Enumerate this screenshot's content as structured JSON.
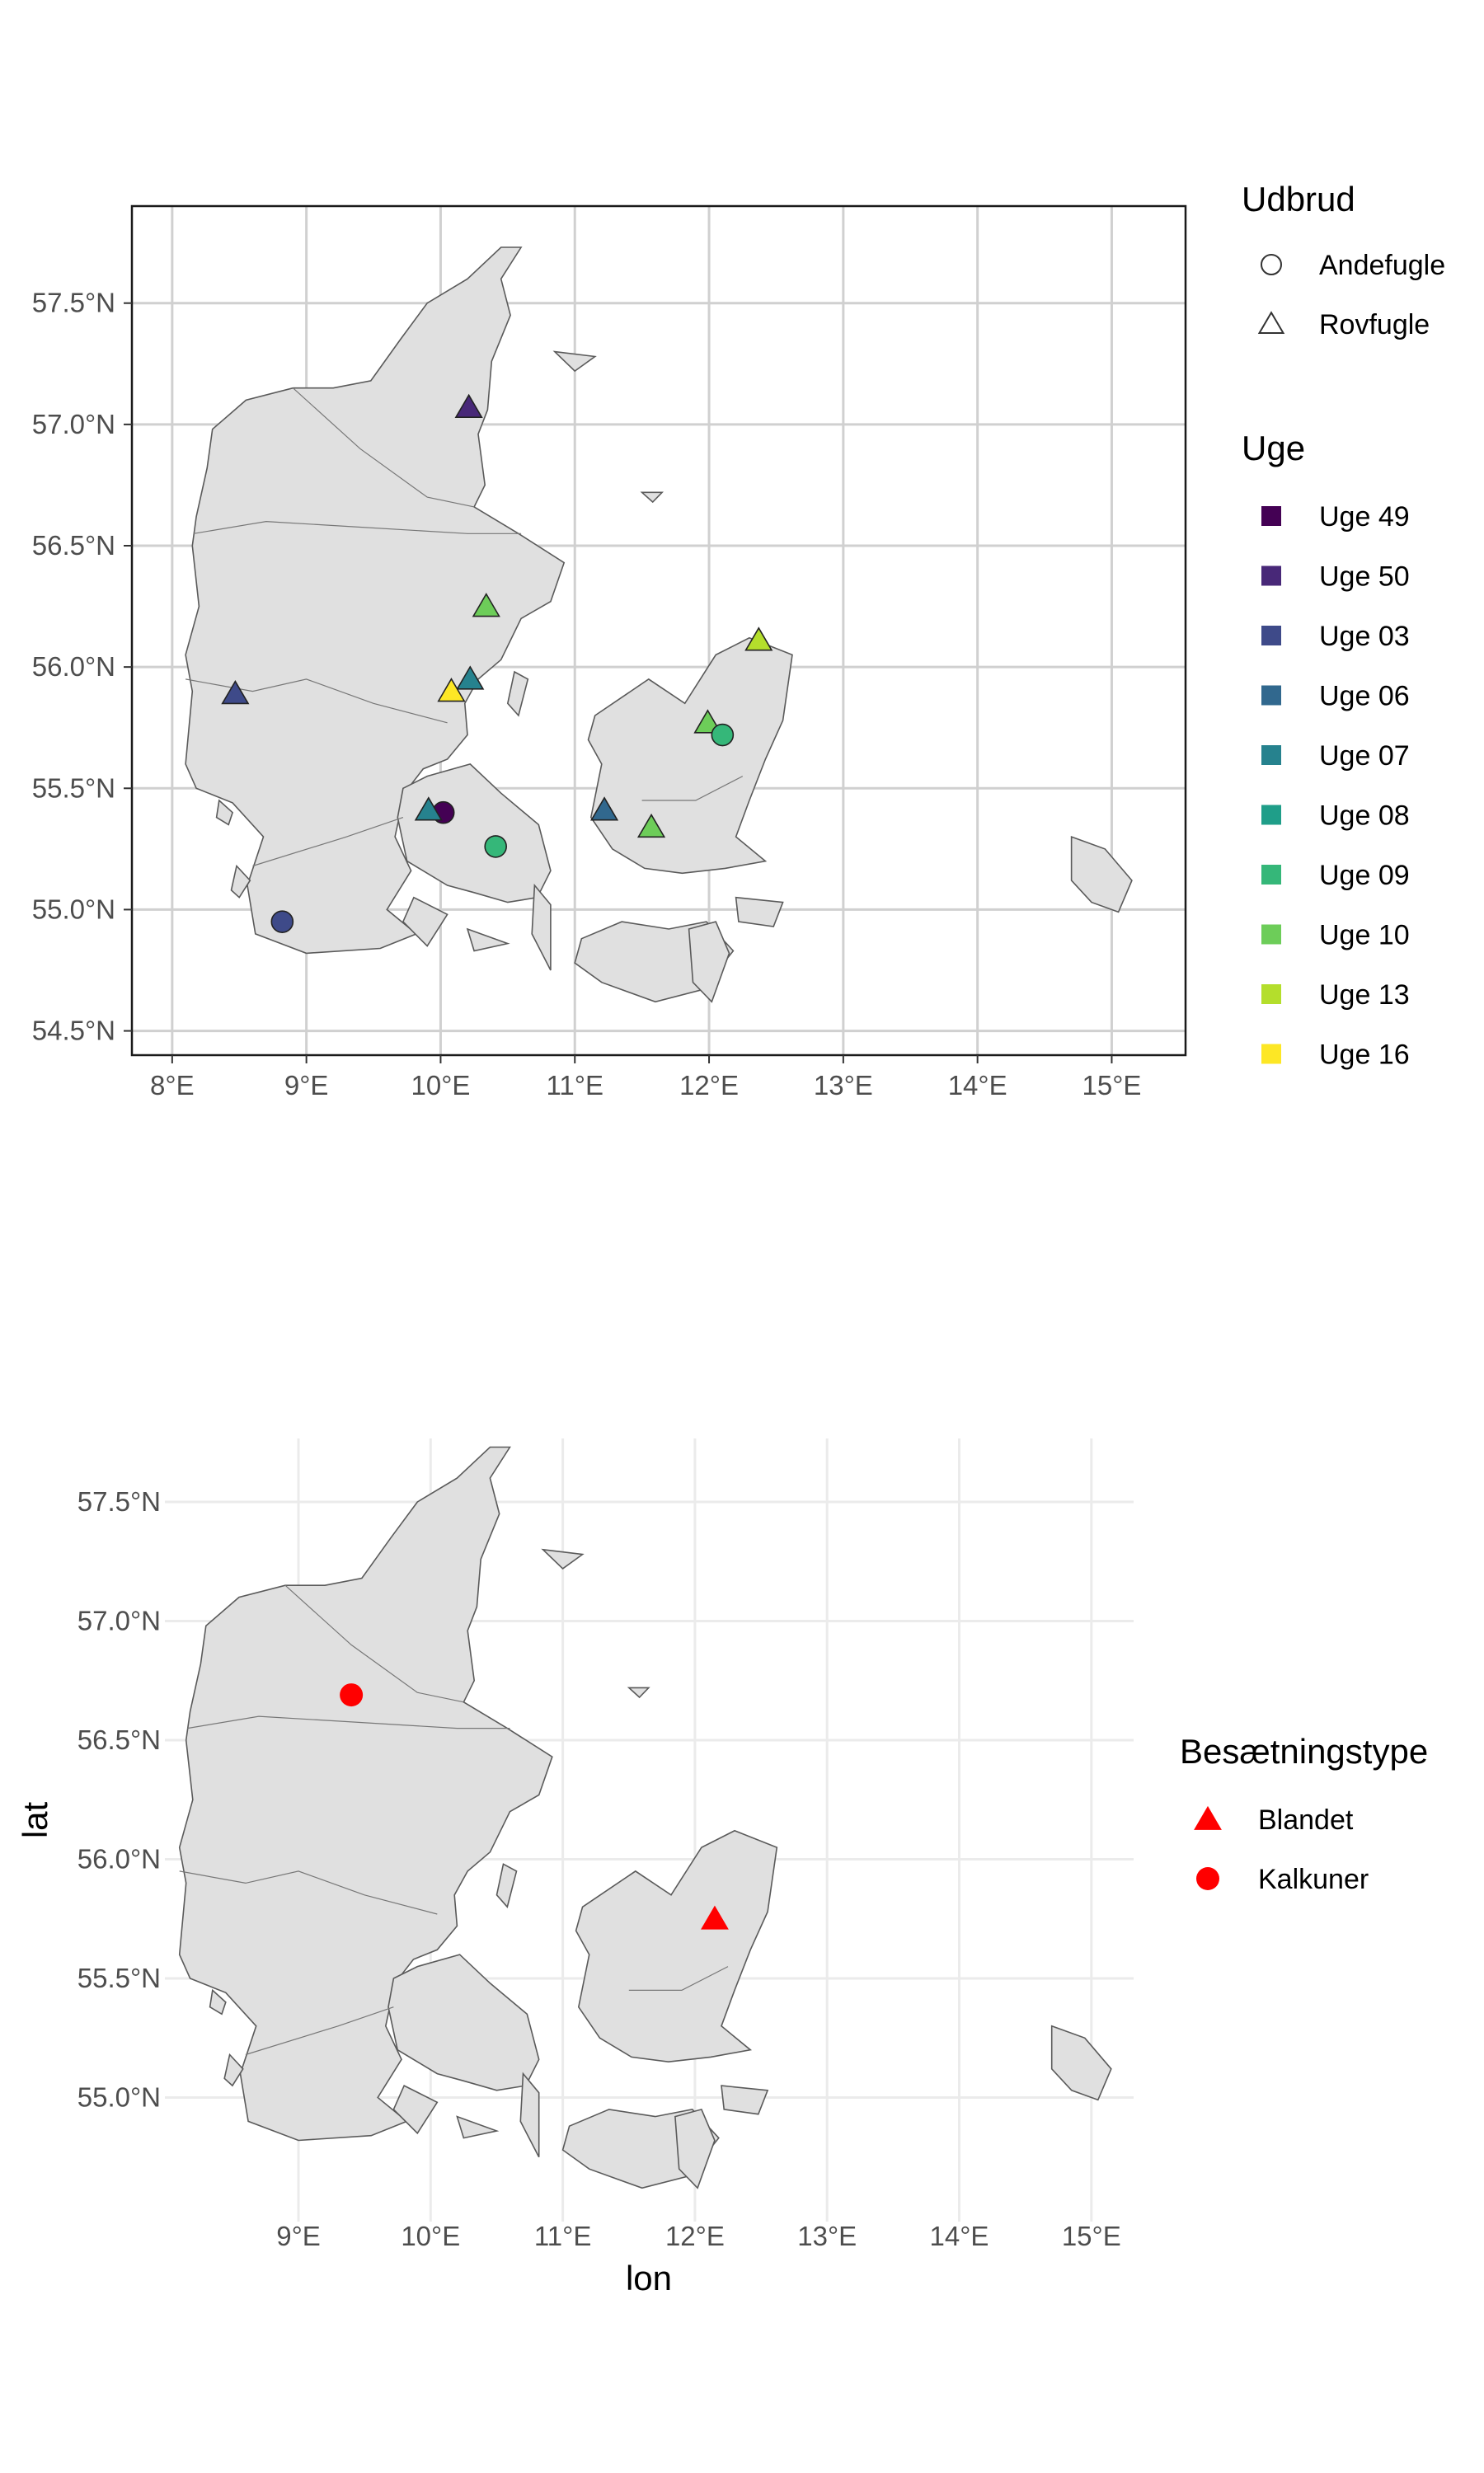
{
  "chart_data": [
    {
      "type": "scatter",
      "title": "",
      "xlabel": "",
      "ylabel": "",
      "xlim": [
        7.7,
        15.55
      ],
      "ylim": [
        54.4,
        57.9
      ],
      "x_ticks": [
        8,
        9,
        10,
        11,
        12,
        13,
        14,
        15
      ],
      "y_ticks": [
        54.5,
        55.0,
        55.5,
        56.0,
        56.5,
        57.0,
        57.5
      ],
      "x_tick_labels": [
        "8°E",
        "9°E",
        "10°E",
        "11°E",
        "12°E",
        "13°E",
        "14°E",
        "15°E"
      ],
      "y_tick_labels": [
        "54.5°N",
        "55.0°N",
        "55.5°N",
        "56.0°N",
        "56.5°N",
        "57.0°N",
        "57.5°N"
      ],
      "grid": true,
      "panel_border": true,
      "legend_position": "right",
      "shape_legend": {
        "title": "Udbrud",
        "items": [
          {
            "label": "Andefugle",
            "shape": "circle"
          },
          {
            "label": "Rovfugle",
            "shape": "triangle"
          }
        ]
      },
      "color_legend": {
        "title": "Uge",
        "items": [
          {
            "label": "Uge 49",
            "color": "#440154"
          },
          {
            "label": "Uge 50",
            "color": "#482878"
          },
          {
            "label": "Uge 03",
            "color": "#3E4A89"
          },
          {
            "label": "Uge 06",
            "color": "#31688E"
          },
          {
            "label": "Uge 07",
            "color": "#26828E"
          },
          {
            "label": "Uge 08",
            "color": "#1F9E89"
          },
          {
            "label": "Uge 09",
            "color": "#35B779"
          },
          {
            "label": "Uge 10",
            "color": "#6DCD59"
          },
          {
            "label": "Uge 13",
            "color": "#B4DE2C"
          },
          {
            "label": "Uge 16",
            "color": "#FDE725"
          }
        ]
      },
      "points": [
        {
          "lon": 10.21,
          "lat": 57.07,
          "shape": "triangle",
          "week": "Uge 50"
        },
        {
          "lon": 10.34,
          "lat": 56.25,
          "shape": "triangle",
          "week": "Uge 10"
        },
        {
          "lon": 8.47,
          "lat": 55.89,
          "shape": "triangle",
          "week": "Uge 03"
        },
        {
          "lon": 10.22,
          "lat": 55.95,
          "shape": "triangle",
          "week": "Uge 07"
        },
        {
          "lon": 10.08,
          "lat": 55.9,
          "shape": "triangle",
          "week": "Uge 16"
        },
        {
          "lon": 12.37,
          "lat": 56.11,
          "shape": "triangle",
          "week": "Uge 13"
        },
        {
          "lon": 11.99,
          "lat": 55.77,
          "shape": "triangle",
          "week": "Uge 10"
        },
        {
          "lon": 12.1,
          "lat": 55.72,
          "shape": "circle",
          "week": "Uge 09"
        },
        {
          "lon": 10.02,
          "lat": 55.4,
          "shape": "circle",
          "week": "Uge 49"
        },
        {
          "lon": 9.91,
          "lat": 55.41,
          "shape": "triangle",
          "week": "Uge 07"
        },
        {
          "lon": 10.41,
          "lat": 55.26,
          "shape": "circle",
          "week": "Uge 09"
        },
        {
          "lon": 11.22,
          "lat": 55.41,
          "shape": "triangle",
          "week": "Uge 06"
        },
        {
          "lon": 11.57,
          "lat": 55.34,
          "shape": "triangle",
          "week": "Uge 10"
        },
        {
          "lon": 8.82,
          "lat": 54.95,
          "shape": "circle",
          "week": "Uge 03"
        }
      ]
    },
    {
      "type": "scatter",
      "title": "",
      "xlabel": "lon",
      "ylabel": "lat",
      "xlim": [
        7.95,
        15.25
      ],
      "ylim": [
        54.62,
        57.75
      ],
      "x_ticks": [
        9,
        10,
        11,
        12,
        13,
        14,
        15
      ],
      "y_ticks": [
        55.0,
        55.5,
        56.0,
        56.5,
        57.0,
        57.5
      ],
      "x_tick_labels": [
        "9°E",
        "10°E",
        "11°E",
        "12°E",
        "13°E",
        "14°E",
        "15°E"
      ],
      "y_tick_labels": [
        "55.0°N",
        "55.5°N",
        "56.0°N",
        "56.5°N",
        "57.0°N",
        "57.5°N"
      ],
      "grid": true,
      "panel_border": false,
      "legend_position": "right",
      "legend": {
        "title": "Besætningstype",
        "items": [
          {
            "label": "Blandet",
            "shape": "triangle",
            "color": "#FF0000"
          },
          {
            "label": "Kalkuner",
            "shape": "circle",
            "color": "#FF0000"
          }
        ]
      },
      "points": [
        {
          "lon": 9.4,
          "lat": 56.69,
          "shape": "circle",
          "type": "Kalkuner"
        },
        {
          "lon": 12.15,
          "lat": 55.75,
          "shape": "triangle",
          "type": "Blandet"
        }
      ]
    }
  ]
}
